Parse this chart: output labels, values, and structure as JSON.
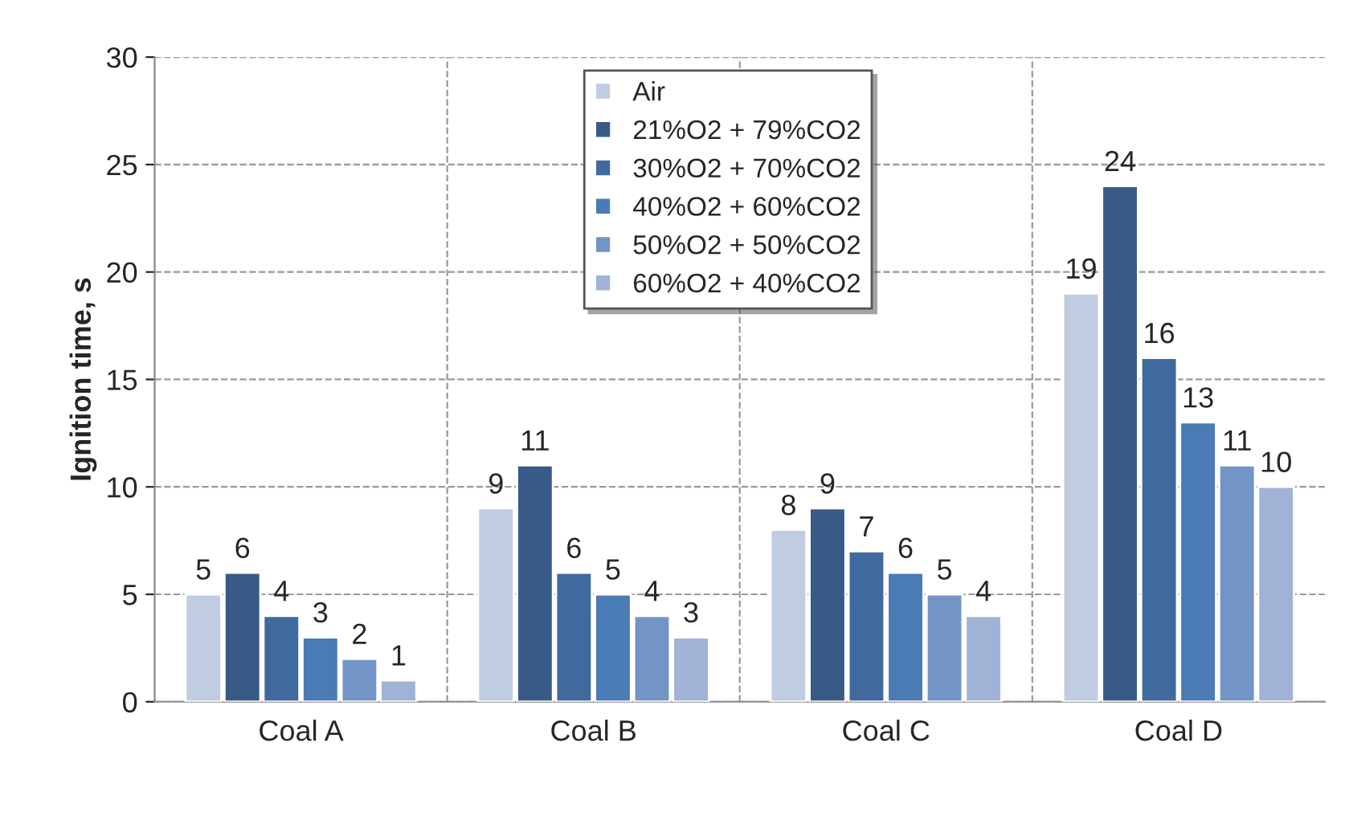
{
  "chart_data": {
    "type": "bar",
    "ylabel": "Ignition time, s",
    "categories": [
      "Coal A",
      "Coal B",
      "Coal C",
      "Coal D"
    ],
    "series": [
      {
        "name": "Air",
        "color": "#c0cce0",
        "values": [
          5,
          9,
          8,
          19
        ]
      },
      {
        "name": "21%O2 + 79%CO2",
        "color": "#375a87",
        "values": [
          6,
          11,
          9,
          24
        ]
      },
      {
        "name": "30%O2 + 70%CO2",
        "color": "#40699e",
        "values": [
          4,
          6,
          7,
          16
        ]
      },
      {
        "name": "40%O2 + 60%CO2",
        "color": "#4a7bb5",
        "values": [
          3,
          5,
          6,
          13
        ]
      },
      {
        "name": "50%O2 + 50%CO2",
        "color": "#7394c6",
        "values": [
          2,
          4,
          5,
          11
        ]
      },
      {
        "name": "60%O2 + 40%CO2",
        "color": "#a0b3d6",
        "values": [
          1,
          3,
          4,
          10
        ]
      }
    ],
    "ylim": [
      0,
      30
    ],
    "yticks": [
      0,
      5,
      10,
      15,
      20,
      25,
      30
    ],
    "grid": true,
    "legend": "top",
    "data_labels": true
  }
}
